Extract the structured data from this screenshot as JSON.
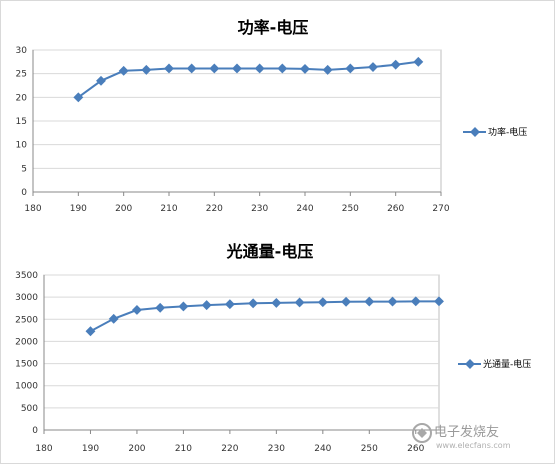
{
  "colors": {
    "series": "#4a7ebb",
    "grid": "#d9d9d9",
    "axis": "#888888"
  },
  "watermark": {
    "name": "电子发烧友",
    "url": "www.elecfans.com",
    "icon": "elecfans-logo"
  },
  "chart_data": [
    {
      "type": "line",
      "title": "功率-电压",
      "xlabel": "",
      "ylabel": "",
      "xlim": [
        180,
        270
      ],
      "ylim": [
        0,
        30
      ],
      "x_ticks": [
        180,
        190,
        200,
        210,
        220,
        230,
        240,
        250,
        260,
        270
      ],
      "y_ticks": [
        0,
        5,
        10,
        15,
        20,
        25,
        30
      ],
      "grid": true,
      "legend_position": "right",
      "series": [
        {
          "name": "功率-电压",
          "x": [
            190,
            195,
            200,
            205,
            210,
            215,
            220,
            225,
            230,
            235,
            240,
            245,
            250,
            255,
            260,
            265
          ],
          "values": [
            20.0,
            23.5,
            25.6,
            25.8,
            26.1,
            26.1,
            26.1,
            26.1,
            26.1,
            26.1,
            26.0,
            25.8,
            26.1,
            26.4,
            26.9,
            27.5
          ]
        }
      ]
    },
    {
      "type": "line",
      "title": "光通量-电压",
      "xlabel": "",
      "ylabel": "",
      "xlim": [
        180,
        265
      ],
      "ylim": [
        0,
        3500
      ],
      "x_ticks": [
        180,
        190,
        200,
        210,
        220,
        230,
        240,
        250,
        260
      ],
      "y_ticks": [
        0,
        500,
        1000,
        1500,
        2000,
        2500,
        3000,
        3500
      ],
      "grid": true,
      "legend_position": "right",
      "series": [
        {
          "name": "光通量-电压",
          "x": [
            190,
            195,
            200,
            205,
            210,
            215,
            220,
            225,
            230,
            235,
            240,
            245,
            250,
            255,
            260,
            265
          ],
          "values": [
            2230,
            2510,
            2710,
            2760,
            2790,
            2820,
            2840,
            2860,
            2870,
            2880,
            2885,
            2895,
            2900,
            2900,
            2905,
            2905
          ]
        }
      ]
    }
  ]
}
